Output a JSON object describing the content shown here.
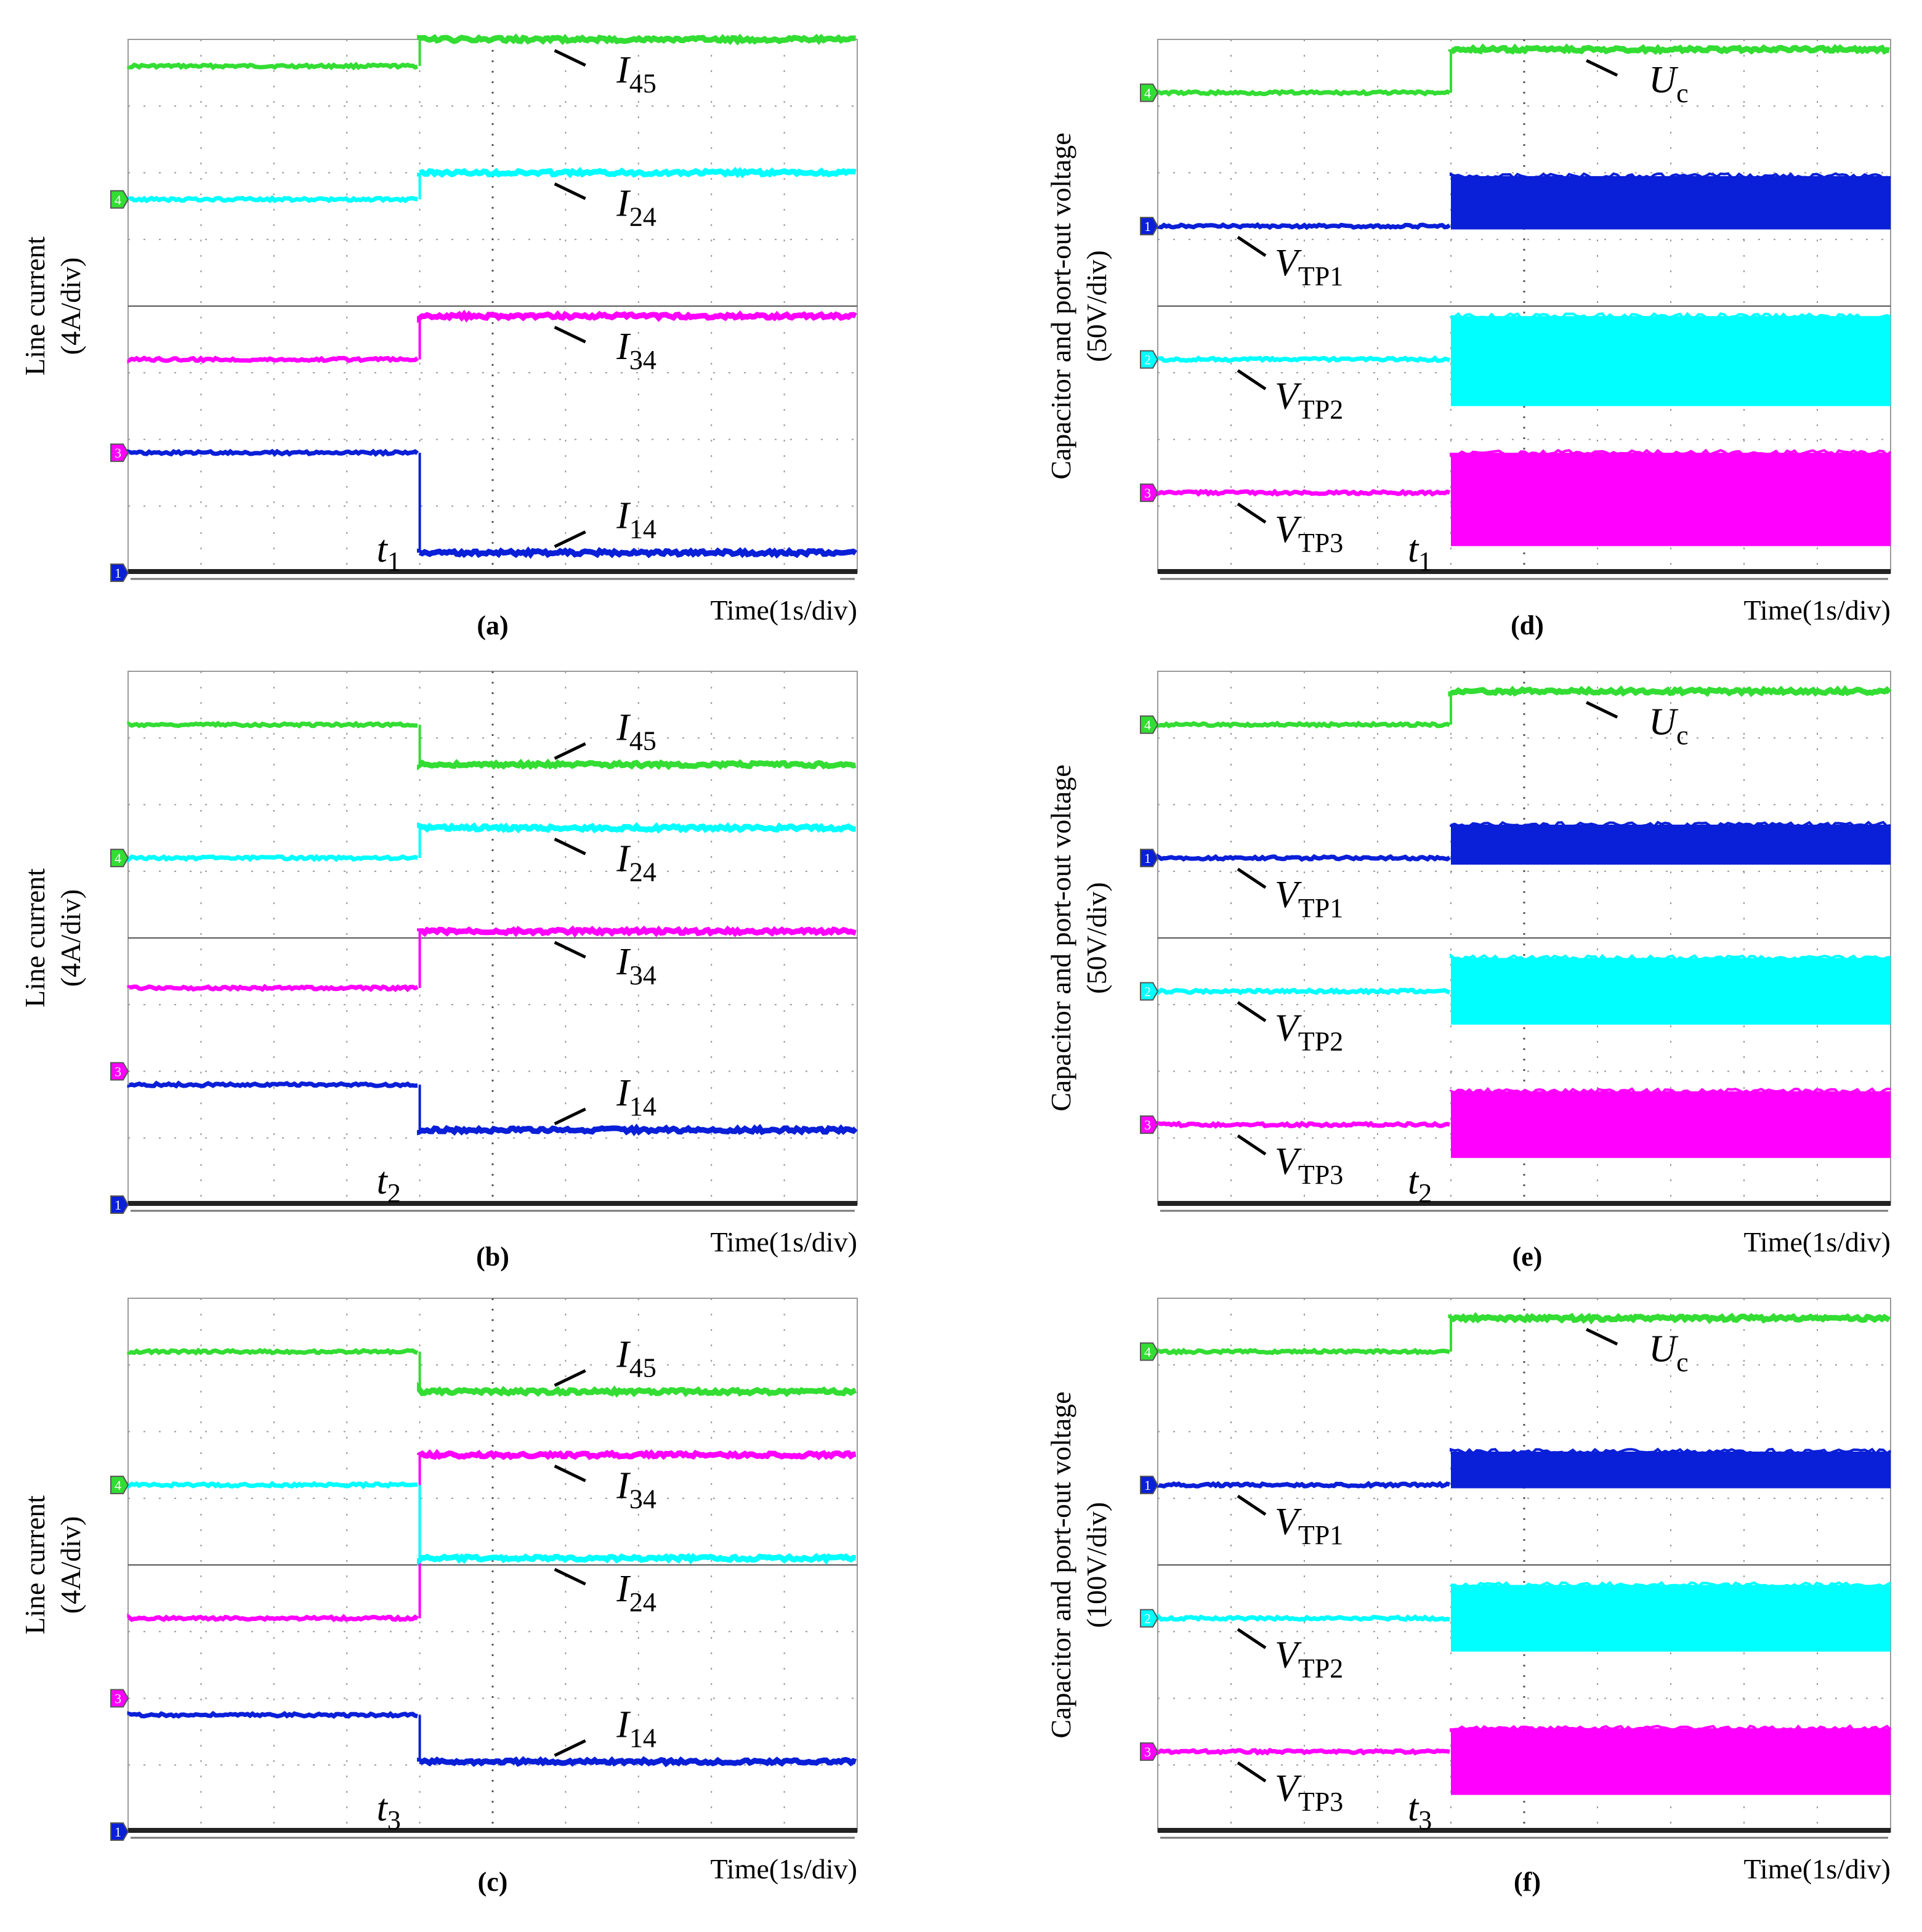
{
  "chart_data": [
    {
      "id": "a",
      "type": "line",
      "caption": "(a)",
      "ylabel_line1": "Line current",
      "ylabel_line2": "(4A/div)",
      "xlabel": "Time(1s/div)",
      "event": {
        "letter": "t",
        "sub": "1",
        "time_div": 4.0
      },
      "xlim": [
        0,
        10
      ],
      "ylim": [
        0,
        8
      ],
      "series": [
        {
          "name": "I45",
          "label_main": "I",
          "label_sub": "45",
          "color": "#33dd33",
          "before": 7.6,
          "after": 8.0,
          "mode": "level",
          "arrow": "down"
        },
        {
          "name": "I24",
          "label_main": "I",
          "label_sub": "24",
          "color": "#00ffff",
          "before": 5.6,
          "after": 6.0,
          "mode": "level",
          "arrow": "down"
        },
        {
          "name": "I34",
          "label_main": "I",
          "label_sub": "34",
          "color": "#ff00ff",
          "before": 3.2,
          "after": 3.85,
          "mode": "level",
          "arrow": "down"
        },
        {
          "name": "I14",
          "label_main": "I",
          "label_sub": "14",
          "color": "#0a1fd8",
          "before": 1.8,
          "after": 0.3,
          "mode": "level",
          "arrow": "up"
        }
      ],
      "markers": [
        {
          "channel": "4",
          "color": "#33dd33",
          "div": 5.6
        },
        {
          "channel": "3",
          "color": "#ff00ff",
          "div": 1.8
        },
        {
          "channel": "1",
          "color": "#0a1fd8",
          "div": 0
        }
      ]
    },
    {
      "id": "b",
      "type": "line",
      "caption": "(b)",
      "ylabel_line1": "Line current",
      "ylabel_line2": "(4A/div)",
      "xlabel": "Time(1s/div)",
      "event": {
        "letter": "t",
        "sub": "2",
        "time_div": 4.0
      },
      "xlim": [
        0,
        10
      ],
      "ylim": [
        0,
        8
      ],
      "series": [
        {
          "name": "I45",
          "label_main": "I",
          "label_sub": "45",
          "color": "#33dd33",
          "before": 7.2,
          "after": 6.6,
          "mode": "level",
          "arrow": "up"
        },
        {
          "name": "I24",
          "label_main": "I",
          "label_sub": "24",
          "color": "#00ffff",
          "before": 5.2,
          "after": 5.65,
          "mode": "level",
          "arrow": "down"
        },
        {
          "name": "I34",
          "label_main": "I",
          "label_sub": "34",
          "color": "#ff00ff",
          "before": 3.25,
          "after": 4.1,
          "mode": "level",
          "arrow": "down"
        },
        {
          "name": "I14",
          "label_main": "I",
          "label_sub": "14",
          "color": "#0a1fd8",
          "before": 1.8,
          "after": 1.12,
          "mode": "level",
          "arrow": "up"
        }
      ],
      "markers": [
        {
          "channel": "4",
          "color": "#33dd33",
          "div": 5.2
        },
        {
          "channel": "3",
          "color": "#ff00ff",
          "div": 2.0
        },
        {
          "channel": "1",
          "color": "#0a1fd8",
          "div": 0
        }
      ]
    },
    {
      "id": "c",
      "type": "line",
      "caption": "(c)",
      "ylabel_line1": "Line current",
      "ylabel_line2": "(4A/div)",
      "xlabel": "Time(1s/div)",
      "event": {
        "letter": "t",
        "sub": "3",
        "time_div": 4.0
      },
      "xlim": [
        0,
        10
      ],
      "ylim": [
        0,
        8
      ],
      "series": [
        {
          "name": "I45",
          "label_main": "I",
          "label_sub": "45",
          "color": "#33dd33",
          "before": 7.2,
          "after": 6.6,
          "mode": "level",
          "arrow": "up"
        },
        {
          "name": "I34",
          "label_main": "I",
          "label_sub": "34",
          "color": "#ff00ff",
          "before": 3.2,
          "after": 5.65,
          "mode": "level",
          "arrow": "down"
        },
        {
          "name": "I24",
          "label_main": "I",
          "label_sub": "24",
          "color": "#00ffff",
          "before": 5.2,
          "after": 4.1,
          "mode": "level",
          "arrow": "down"
        },
        {
          "name": "I14",
          "label_main": "I",
          "label_sub": "14",
          "color": "#0a1fd8",
          "before": 1.75,
          "after": 1.05,
          "mode": "level",
          "arrow": "up"
        }
      ],
      "markers": [
        {
          "channel": "4",
          "color": "#33dd33",
          "div": 5.2
        },
        {
          "channel": "3",
          "color": "#ff00ff",
          "div": 2.0
        },
        {
          "channel": "1",
          "color": "#0a1fd8",
          "div": 0
        }
      ]
    },
    {
      "id": "d",
      "type": "line",
      "caption": "(d)",
      "ylabel_line1": "Capacitor and port-out voltage",
      "ylabel_line2": "(50V/div)",
      "xlabel": "Time(1s/div)",
      "event": {
        "letter": "t",
        "sub": "1",
        "time_div": 4.0
      },
      "xlim": [
        0,
        10
      ],
      "ylim": [
        0,
        8
      ],
      "series": [
        {
          "name": "Uc",
          "label_main": "U",
          "label_sub": "c",
          "color": "#33dd33",
          "before": 7.2,
          "after": 7.85,
          "mode": "level",
          "arrow": "down"
        },
        {
          "name": "VTP1",
          "label_main": "V",
          "label_sub": "TP1",
          "color": "#0a1fd8",
          "before": 5.2,
          "after_low": 5.15,
          "after_high": 5.95,
          "mode": "band",
          "arrow": "down"
        },
        {
          "name": "VTP2",
          "label_main": "V",
          "label_sub": "TP2",
          "color": "#00ffff",
          "before": 3.2,
          "after_low": 2.5,
          "after_high": 3.85,
          "mode": "band",
          "arrow": "down"
        },
        {
          "name": "VTP3",
          "label_main": "V",
          "label_sub": "TP3",
          "color": "#ff00ff",
          "before": 1.2,
          "after_low": 0.4,
          "after_high": 1.8,
          "mode": "band",
          "arrow": "down"
        }
      ],
      "markers": [
        {
          "channel": "4",
          "color": "#33dd33",
          "div": 7.2
        },
        {
          "channel": "1",
          "color": "#0a1fd8",
          "div": 5.2
        },
        {
          "channel": "2",
          "color": "#00ffff",
          "div": 3.2
        },
        {
          "channel": "3",
          "color": "#ff00ff",
          "div": 1.2
        }
      ]
    },
    {
      "id": "e",
      "type": "line",
      "caption": "(e)",
      "ylabel_line1": "Capacitor and port-out voltage",
      "ylabel_line2": "(50V/div)",
      "xlabel": "Time(1s/div)",
      "event": {
        "letter": "t",
        "sub": "2",
        "time_div": 4.0
      },
      "xlim": [
        0,
        10
      ],
      "ylim": [
        0,
        8
      ],
      "series": [
        {
          "name": "Uc",
          "label_main": "U",
          "label_sub": "c",
          "color": "#33dd33",
          "before": 7.2,
          "after": 7.7,
          "mode": "level",
          "arrow": "down"
        },
        {
          "name": "VTP1",
          "label_main": "V",
          "label_sub": "TP1",
          "color": "#0a1fd8",
          "before": 5.2,
          "after_low": 5.1,
          "after_high": 5.7,
          "mode": "band",
          "arrow": "down"
        },
        {
          "name": "VTP2",
          "label_main": "V",
          "label_sub": "TP2",
          "color": "#00ffff",
          "before": 3.2,
          "after_low": 2.7,
          "after_high": 3.7,
          "mode": "band",
          "arrow": "down"
        },
        {
          "name": "VTP3",
          "label_main": "V",
          "label_sub": "TP3",
          "color": "#ff00ff",
          "before": 1.2,
          "after_low": 0.7,
          "after_high": 1.7,
          "mode": "band",
          "arrow": "down"
        }
      ],
      "markers": [
        {
          "channel": "4",
          "color": "#33dd33",
          "div": 7.2
        },
        {
          "channel": "1",
          "color": "#0a1fd8",
          "div": 5.2
        },
        {
          "channel": "2",
          "color": "#00ffff",
          "div": 3.2
        },
        {
          "channel": "3",
          "color": "#ff00ff",
          "div": 1.2
        }
      ]
    },
    {
      "id": "f",
      "type": "line",
      "caption": "(f)",
      "ylabel_line1": "Capacitor and port-out voltage",
      "ylabel_line2": "(100V/div)",
      "xlabel": "Time(1s/div)",
      "event": {
        "letter": "t",
        "sub": "3",
        "time_div": 4.0
      },
      "xlim": [
        0,
        10
      ],
      "ylim": [
        0,
        8
      ],
      "series": [
        {
          "name": "Uc",
          "label_main": "U",
          "label_sub": "c",
          "color": "#33dd33",
          "before": 7.2,
          "after": 7.7,
          "mode": "level",
          "arrow": "down"
        },
        {
          "name": "VTP1",
          "label_main": "V",
          "label_sub": "TP1",
          "color": "#0a1fd8",
          "before": 5.2,
          "after_low": 5.15,
          "after_high": 5.7,
          "mode": "band",
          "arrow": "down"
        },
        {
          "name": "VTP2",
          "label_main": "V",
          "label_sub": "TP2",
          "color": "#00ffff",
          "before": 3.2,
          "after_low": 2.7,
          "after_high": 3.7,
          "mode": "band",
          "arrow": "down"
        },
        {
          "name": "VTP3",
          "label_main": "V",
          "label_sub": "TP3",
          "color": "#ff00ff",
          "before": 1.2,
          "after_low": 0.55,
          "after_high": 1.55,
          "mode": "band",
          "arrow": "down"
        }
      ],
      "markers": [
        {
          "channel": "4",
          "color": "#33dd33",
          "div": 7.2
        },
        {
          "channel": "1",
          "color": "#0a1fd8",
          "div": 5.2
        },
        {
          "channel": "2",
          "color": "#00ffff",
          "div": 3.2
        },
        {
          "channel": "3",
          "color": "#ff00ff",
          "div": 1.2
        }
      ]
    }
  ]
}
